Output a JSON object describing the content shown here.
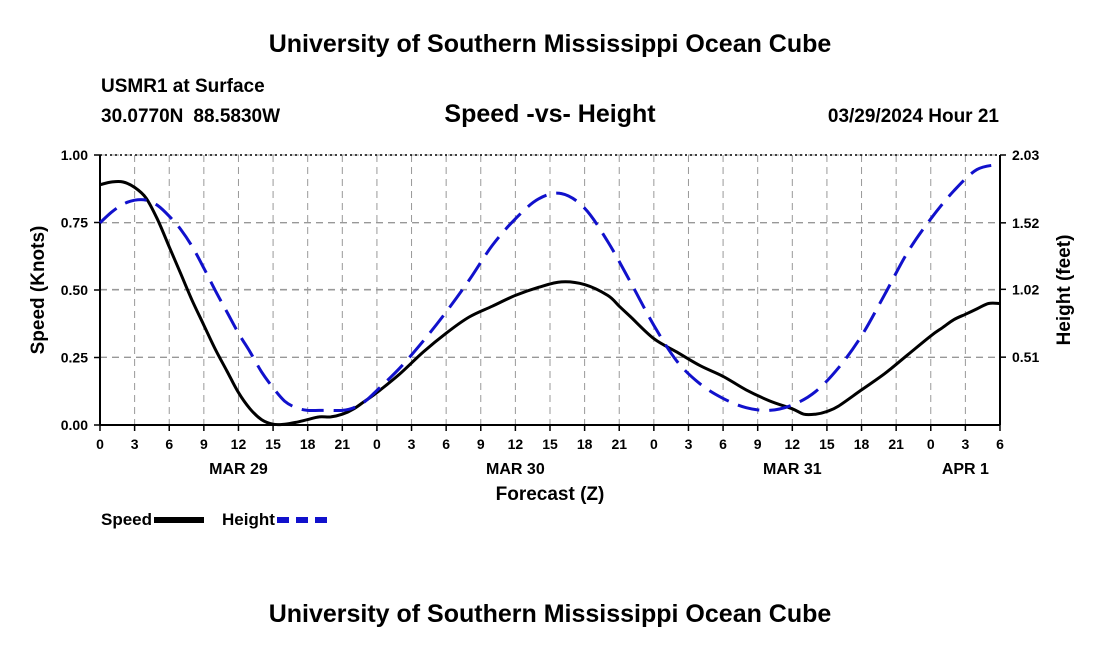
{
  "header": {
    "title": "University of Southern Mississippi Ocean Cube",
    "station": "USMR1 at Surface",
    "lat": "30.0770N",
    "lon": "88.5830W",
    "subtitle": "Speed -vs- Height",
    "datetime": "03/29/2024 Hour 21"
  },
  "footer": {
    "title": "University of Southern Mississippi Ocean Cube"
  },
  "legend": {
    "speed_label": "Speed",
    "height_label": "Height"
  },
  "colors": {
    "speed": "#000000",
    "height": "#1111cc",
    "grid": "#999999"
  },
  "chart_data": {
    "type": "line",
    "title": "Speed -vs- Height",
    "xlabel": "Forecast (Z)",
    "ylabel": "Speed (Knots)",
    "y2label": "Height (feet)",
    "x_units": "hours from MAR 29 00Z",
    "xlim": [
      0,
      78
    ],
    "ylim": [
      0,
      1
    ],
    "y2lim": [
      0,
      2.03
    ],
    "x_tick_labels": [
      "0",
      "3",
      "6",
      "9",
      "12",
      "15",
      "18",
      "21",
      "0",
      "3",
      "6",
      "9",
      "12",
      "15",
      "18",
      "21",
      "0",
      "3",
      "6",
      "9",
      "12",
      "15",
      "18",
      "21",
      "0",
      "3",
      "6"
    ],
    "day_labels": [
      {
        "label": "MAR 29",
        "x": 12
      },
      {
        "label": "MAR 30",
        "x": 36
      },
      {
        "label": "MAR 31",
        "x": 60
      },
      {
        "label": "APR 1",
        "x": 75
      }
    ],
    "y_ticks": [
      {
        "value": 0,
        "label": "0.00"
      },
      {
        "value": 0.25,
        "label": "0.25"
      },
      {
        "value": 0.5,
        "label": "0.50"
      },
      {
        "value": 0.75,
        "label": "0.75"
      },
      {
        "value": 1,
        "label": "1.00"
      }
    ],
    "y2_ticks": [
      {
        "value": 0.51,
        "label": "0.51"
      },
      {
        "value": 1.02,
        "label": "1.02"
      },
      {
        "value": 1.52,
        "label": "1.52"
      },
      {
        "value": 2.03,
        "label": "2.03"
      }
    ],
    "grid": true,
    "series": [
      {
        "name": "Speed",
        "axis": "left",
        "style": "solid",
        "x": [
          0,
          1,
          2,
          3,
          4,
          5,
          6,
          7,
          8,
          9,
          10,
          11,
          12,
          13,
          14,
          15,
          16,
          17,
          18,
          19,
          20,
          21,
          22,
          23,
          24,
          26,
          28,
          30,
          32,
          34,
          36,
          38,
          40,
          42,
          44,
          45,
          46,
          48,
          50,
          52,
          54,
          56,
          58,
          60,
          61,
          62,
          63,
          64,
          66,
          68,
          70,
          72,
          73,
          74,
          75,
          76,
          77,
          78
        ],
        "values": [
          0.89,
          0.9,
          0.9,
          0.88,
          0.84,
          0.76,
          0.66,
          0.56,
          0.46,
          0.37,
          0.28,
          0.2,
          0.12,
          0.06,
          0.02,
          0.003,
          0.003,
          0.01,
          0.02,
          0.03,
          0.03,
          0.04,
          0.06,
          0.09,
          0.12,
          0.19,
          0.27,
          0.34,
          0.4,
          0.44,
          0.48,
          0.51,
          0.53,
          0.52,
          0.48,
          0.44,
          0.4,
          0.32,
          0.27,
          0.22,
          0.18,
          0.13,
          0.09,
          0.06,
          0.04,
          0.04,
          0.05,
          0.07,
          0.13,
          0.19,
          0.26,
          0.33,
          0.36,
          0.39,
          0.41,
          0.43,
          0.45,
          0.45
        ]
      },
      {
        "name": "Height",
        "axis": "right",
        "style": "dashed",
        "x": [
          0,
          1,
          2,
          3,
          4,
          5,
          6,
          7,
          8,
          9,
          10,
          11,
          12,
          13,
          14,
          15,
          16,
          17,
          18,
          19,
          20,
          21,
          22,
          23,
          24,
          26,
          28,
          30,
          32,
          34,
          36,
          38,
          40,
          42,
          44,
          46,
          48,
          50,
          52,
          54,
          56,
          58,
          60,
          62,
          64,
          66,
          68,
          70,
          72,
          74,
          76,
          78
        ],
        "values": [
          1.52,
          1.6,
          1.66,
          1.69,
          1.69,
          1.65,
          1.57,
          1.47,
          1.34,
          1.18,
          1.01,
          0.85,
          0.69,
          0.55,
          0.4,
          0.28,
          0.18,
          0.13,
          0.11,
          0.11,
          0.11,
          0.11,
          0.13,
          0.18,
          0.26,
          0.43,
          0.63,
          0.85,
          1.09,
          1.35,
          1.55,
          1.7,
          1.74,
          1.63,
          1.38,
          1.07,
          0.75,
          0.48,
          0.31,
          0.2,
          0.13,
          0.11,
          0.15,
          0.25,
          0.43,
          0.67,
          0.98,
          1.3,
          1.55,
          1.76,
          1.92,
          1.96
        ]
      }
    ]
  }
}
